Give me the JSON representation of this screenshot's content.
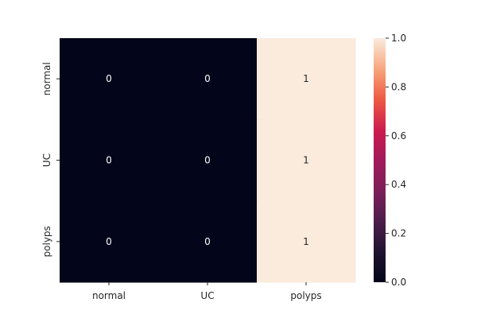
{
  "chart_data": {
    "type": "heatmap",
    "title": "",
    "xlabel": "",
    "ylabel": "",
    "x_categories": [
      "normal",
      "UC",
      "polyps"
    ],
    "y_categories": [
      "normal",
      "UC",
      "polyps"
    ],
    "values": [
      [
        0,
        0,
        1
      ],
      [
        0,
        0,
        1
      ],
      [
        0,
        0,
        1
      ]
    ],
    "annotations": [
      [
        "0",
        "0",
        "1"
      ],
      [
        "0",
        "0",
        "1"
      ],
      [
        "0",
        "0",
        "1"
      ]
    ],
    "colorbar": {
      "range": [
        0.0,
        1.0
      ],
      "ticks": [
        "0.0",
        "0.2",
        "0.4",
        "0.6",
        "0.8",
        "1.0"
      ],
      "colormap": "rocket",
      "low_color": "#03051a",
      "high_color": "#faebdd"
    },
    "annotation_colors": {
      "on_dark": "#ffffff",
      "on_light": "#262626"
    }
  }
}
